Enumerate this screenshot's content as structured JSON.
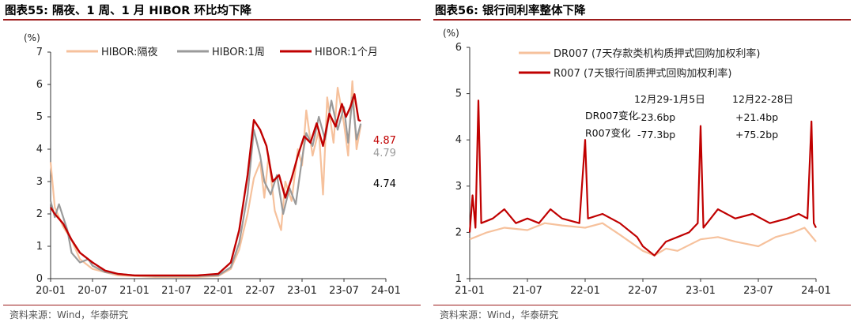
{
  "left": {
    "title": "图表55:  隔夜、1 周、1 月 HIBOR 环比均下降",
    "source": "资料来源：Wind，华泰研究",
    "chart_data": {
      "type": "line",
      "unit": "(%)",
      "x_ticks": [
        "20-01",
        "20-07",
        "21-01",
        "21-07",
        "22-01",
        "22-07",
        "23-01",
        "23-07",
        "24-01"
      ],
      "ylim": [
        0,
        7
      ],
      "y_ticks": [
        0,
        1,
        2,
        3,
        4,
        5,
        6,
        7
      ],
      "legend_position": "top",
      "series": [
        {
          "name": "HIBOR:隔夜",
          "color": "#f6c19c",
          "width": 2.2,
          "end_label": "4.74",
          "end_color": "#000000",
          "values": [
            [
              0,
              3.6
            ],
            [
              0.1,
              2.2
            ],
            [
              0.3,
              1.6
            ],
            [
              0.5,
              1.2
            ],
            [
              0.7,
              0.6
            ],
            [
              0.9,
              0.4
            ],
            [
              1,
              0.3
            ],
            [
              1.3,
              0.2
            ],
            [
              1.6,
              0.1
            ],
            [
              2,
              0.08
            ],
            [
              2.5,
              0.05
            ],
            [
              3,
              0.05
            ],
            [
              3.5,
              0.05
            ],
            [
              4,
              0.08
            ],
            [
              4.3,
              0.3
            ],
            [
              4.5,
              0.9
            ],
            [
              4.7,
              2.0
            ],
            [
              4.85,
              3.1
            ],
            [
              5,
              3.6
            ],
            [
              5.1,
              2.5
            ],
            [
              5.2,
              3.8
            ],
            [
              5.35,
              2.1
            ],
            [
              5.5,
              1.5
            ],
            [
              5.6,
              3.0
            ],
            [
              5.75,
              2.4
            ],
            [
              5.9,
              4.0
            ],
            [
              6,
              3.5
            ],
            [
              6.1,
              5.2
            ],
            [
              6.25,
              3.8
            ],
            [
              6.4,
              4.6
            ],
            [
              6.5,
              2.6
            ],
            [
              6.6,
              5.6
            ],
            [
              6.75,
              4.2
            ],
            [
              6.85,
              5.9
            ],
            [
              7,
              4.8
            ],
            [
              7.1,
              3.8
            ],
            [
              7.2,
              6.1
            ],
            [
              7.3,
              4.0
            ],
            [
              7.4,
              4.74
            ]
          ]
        },
        {
          "name": "HIBOR:1周",
          "color": "#9a9a9a",
          "width": 2.2,
          "end_label": "4.79",
          "end_color": "#9a9a9a",
          "values": [
            [
              0,
              2.4
            ],
            [
              0.1,
              1.9
            ],
            [
              0.2,
              2.3
            ],
            [
              0.4,
              1.5
            ],
            [
              0.5,
              0.8
            ],
            [
              0.7,
              0.5
            ],
            [
              0.9,
              0.6
            ],
            [
              1,
              0.4
            ],
            [
              1.3,
              0.2
            ],
            [
              1.6,
              0.15
            ],
            [
              2,
              0.1
            ],
            [
              2.5,
              0.08
            ],
            [
              3,
              0.08
            ],
            [
              3.5,
              0.08
            ],
            [
              4,
              0.1
            ],
            [
              4.3,
              0.35
            ],
            [
              4.5,
              1.1
            ],
            [
              4.7,
              2.6
            ],
            [
              4.85,
              4.6
            ],
            [
              5,
              3.8
            ],
            [
              5.1,
              3.0
            ],
            [
              5.25,
              2.6
            ],
            [
              5.4,
              3.2
            ],
            [
              5.55,
              2.0
            ],
            [
              5.7,
              2.8
            ],
            [
              5.85,
              2.3
            ],
            [
              6,
              3.7
            ],
            [
              6.1,
              4.5
            ],
            [
              6.25,
              4.1
            ],
            [
              6.4,
              5.0
            ],
            [
              6.55,
              4.3
            ],
            [
              6.7,
              5.5
            ],
            [
              6.85,
              4.6
            ],
            [
              7,
              5.3
            ],
            [
              7.1,
              4.2
            ],
            [
              7.2,
              5.6
            ],
            [
              7.3,
              4.3
            ],
            [
              7.4,
              4.79
            ]
          ]
        },
        {
          "name": "HIBOR:1个月",
          "color": "#c00000",
          "width": 2.4,
          "end_label": "4.87",
          "end_color": "#c00000",
          "values": [
            [
              0,
              2.2
            ],
            [
              0.1,
              2.0
            ],
            [
              0.3,
              1.7
            ],
            [
              0.5,
              1.2
            ],
            [
              0.7,
              0.8
            ],
            [
              0.9,
              0.6
            ],
            [
              1,
              0.5
            ],
            [
              1.3,
              0.25
            ],
            [
              1.6,
              0.15
            ],
            [
              2,
              0.1
            ],
            [
              2.5,
              0.1
            ],
            [
              3,
              0.1
            ],
            [
              3.5,
              0.1
            ],
            [
              4,
              0.15
            ],
            [
              4.3,
              0.5
            ],
            [
              4.5,
              1.5
            ],
            [
              4.7,
              3.2
            ],
            [
              4.85,
              4.9
            ],
            [
              5,
              4.6
            ],
            [
              5.15,
              4.1
            ],
            [
              5.3,
              3.0
            ],
            [
              5.45,
              3.2
            ],
            [
              5.6,
              2.5
            ],
            [
              5.75,
              3.1
            ],
            [
              5.9,
              3.8
            ],
            [
              6.05,
              4.4
            ],
            [
              6.2,
              4.2
            ],
            [
              6.35,
              4.8
            ],
            [
              6.5,
              4.1
            ],
            [
              6.65,
              5.1
            ],
            [
              6.8,
              4.7
            ],
            [
              6.95,
              5.4
            ],
            [
              7.05,
              5.0
            ],
            [
              7.15,
              5.3
            ],
            [
              7.25,
              5.7
            ],
            [
              7.35,
              4.9
            ],
            [
              7.4,
              4.87
            ]
          ]
        }
      ]
    }
  },
  "right": {
    "title": "图表56:  银行间利率整体下降",
    "source": "资料来源：Wind，华泰研究",
    "chart_data": {
      "type": "line",
      "unit": "(%)",
      "x_ticks": [
        "21-01",
        "21-07",
        "22-01",
        "22-07",
        "23-01",
        "23-07",
        "24-01"
      ],
      "ylim": [
        1,
        6
      ],
      "y_ticks": [
        1,
        2,
        3,
        4,
        5,
        6
      ],
      "legend_position": "top",
      "series": [
        {
          "name": "DR007 (7天存款类机构质押式回购加权利率)",
          "color": "#f6c19c",
          "width": 2.2,
          "values": [
            [
              0,
              1.85
            ],
            [
              0.3,
              2.0
            ],
            [
              0.6,
              2.1
            ],
            [
              1,
              2.05
            ],
            [
              1.3,
              2.2
            ],
            [
              1.6,
              2.15
            ],
            [
              2,
              2.1
            ],
            [
              2.3,
              2.2
            ],
            [
              2.6,
              1.95
            ],
            [
              3,
              1.6
            ],
            [
              3.2,
              1.5
            ],
            [
              3.4,
              1.65
            ],
            [
              3.6,
              1.6
            ],
            [
              4,
              1.85
            ],
            [
              4.3,
              1.9
            ],
            [
              4.6,
              1.8
            ],
            [
              5,
              1.7
            ],
            [
              5.3,
              1.9
            ],
            [
              5.6,
              2.0
            ],
            [
              5.8,
              2.1
            ],
            [
              6,
              1.8
            ]
          ]
        },
        {
          "name": "R007 (7天银行间质押式回购加权利率)",
          "color": "#c00000",
          "width": 2.2,
          "values": [
            [
              0,
              2.0
            ],
            [
              0.05,
              2.8
            ],
            [
              0.1,
              2.1
            ],
            [
              0.15,
              4.85
            ],
            [
              0.2,
              2.2
            ],
            [
              0.4,
              2.3
            ],
            [
              0.6,
              2.5
            ],
            [
              0.8,
              2.2
            ],
            [
              1,
              2.3
            ],
            [
              1.2,
              2.2
            ],
            [
              1.4,
              2.5
            ],
            [
              1.6,
              2.3
            ],
            [
              1.9,
              2.2
            ],
            [
              2,
              4.0
            ],
            [
              2.05,
              2.3
            ],
            [
              2.3,
              2.4
            ],
            [
              2.6,
              2.2
            ],
            [
              2.9,
              1.9
            ],
            [
              3,
              1.7
            ],
            [
              3.2,
              1.5
            ],
            [
              3.4,
              1.8
            ],
            [
              3.6,
              1.9
            ],
            [
              3.8,
              2.0
            ],
            [
              3.95,
              2.2
            ],
            [
              4,
              4.3
            ],
            [
              4.05,
              2.1
            ],
            [
              4.3,
              2.5
            ],
            [
              4.6,
              2.3
            ],
            [
              4.9,
              2.4
            ],
            [
              5.2,
              2.2
            ],
            [
              5.5,
              2.3
            ],
            [
              5.7,
              2.4
            ],
            [
              5.85,
              2.3
            ],
            [
              5.92,
              4.4
            ],
            [
              5.96,
              2.2
            ],
            [
              6,
              2.1
            ]
          ]
        }
      ],
      "annotation_table": {
        "columns": [
          "12月29-1月5日",
          "12月22-28日"
        ],
        "rows": [
          {
            "label": "DR007变化",
            "values": [
              "-23.6bp",
              "+21.4bp"
            ]
          },
          {
            "label": "R007变化",
            "values": [
              "-77.3bp",
              "+75.2bp"
            ]
          }
        ]
      }
    }
  }
}
